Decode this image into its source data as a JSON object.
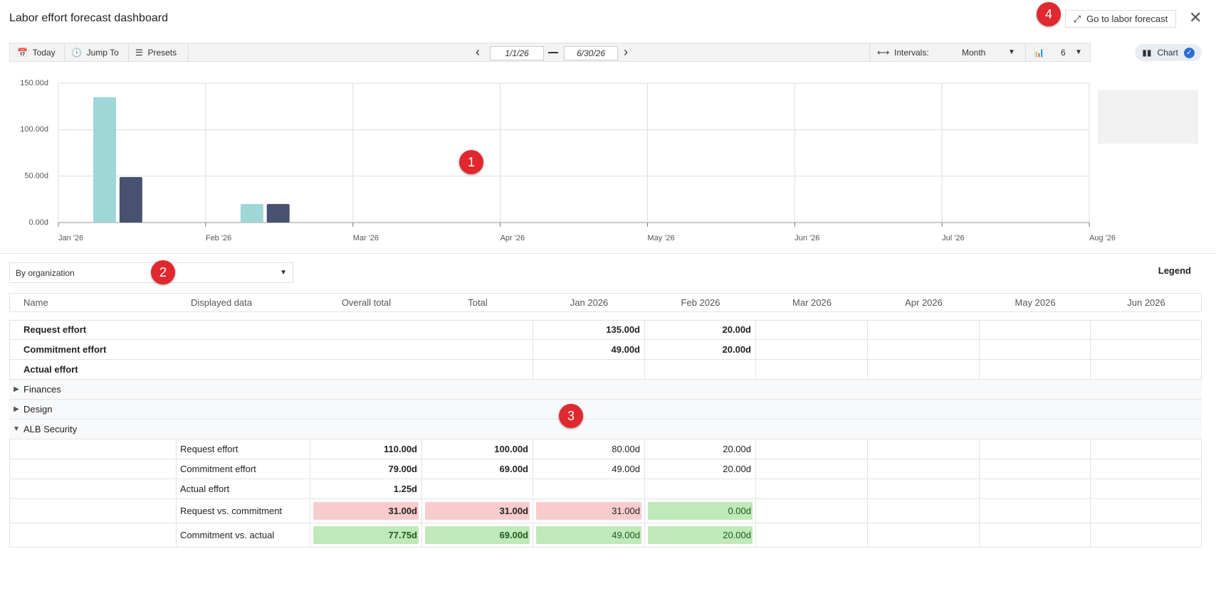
{
  "header": {
    "title": "Labor effort forecast dashboard",
    "action": "Go to labor forecast"
  },
  "toolbar": {
    "today": "Today",
    "jump_to": "Jump To",
    "presets": "Presets",
    "start_date": "1/1/26",
    "end_date": "6/30/26",
    "intervals_label": "Intervals:",
    "interval": "Month",
    "count": "6",
    "view": "Chart"
  },
  "chart_data": {
    "type": "bar",
    "categories": [
      "Jan '26",
      "Feb '26",
      "Mar '26",
      "Apr '26",
      "May '26",
      "Jun '26",
      "Jul '26",
      "Aug '26"
    ],
    "series": [
      {
        "name": "Request effort",
        "color": "#9fd6d8",
        "values": [
          135,
          20,
          null,
          null,
          null,
          null,
          null,
          null
        ]
      },
      {
        "name": "Commitment effort",
        "color": "#465270",
        "values": [
          49,
          20,
          null,
          null,
          null,
          null,
          null,
          null
        ]
      },
      {
        "name": "Actual effort",
        "color": "#4a86e0",
        "values": [
          null,
          null,
          null,
          null,
          null,
          null,
          null,
          null
        ]
      }
    ],
    "ylim": [
      0,
      150
    ],
    "yticks": [
      {
        "value": 0,
        "label": "0.00d"
      },
      {
        "value": 50,
        "label": "50.00d"
      },
      {
        "value": 100,
        "label": "100.00d"
      },
      {
        "value": 150,
        "label": "150.00d"
      }
    ],
    "grid": true,
    "legend": "right"
  },
  "grouping": "By organization",
  "legend_link": "Legend",
  "table": {
    "columns": [
      "Name",
      "Displayed data",
      "Overall total",
      "Total",
      "Jan 2026",
      "Feb 2026",
      "Mar 2026",
      "Apr 2026",
      "May 2026",
      "Jun 2026"
    ],
    "summary_rows": [
      {
        "name": "Request effort",
        "values": [
          "135.00d",
          "20.00d"
        ]
      },
      {
        "name": "Commitment effort",
        "values": [
          "49.00d",
          "20.00d"
        ]
      },
      {
        "name": "Actual effort"
      }
    ],
    "groups": [
      {
        "name": "Finances",
        "expanded": false
      },
      {
        "name": "Design",
        "expanded": false
      },
      {
        "name": "ALB Security",
        "expanded": true,
        "rows": [
          {
            "label": "Request effort",
            "cells": [
              "110.00d",
              "100.00d",
              "80.00d",
              "20.00d"
            ]
          },
          {
            "label": "Commitment effort",
            "cells": [
              "79.00d",
              "69.00d",
              "49.00d",
              "20.00d"
            ]
          },
          {
            "label": "Actual effort",
            "cells": [
              "1.25d"
            ]
          },
          {
            "label": "Request vs. commitment",
            "cells": [
              "31.00d",
              "31.00d",
              "31.00d",
              "0.00d"
            ],
            "status": [
              "negative",
              "negative",
              "negative",
              "positive"
            ]
          },
          {
            "label": "Commitment vs. actual",
            "cells": [
              "77.75d",
              "69.00d",
              "49.00d",
              "20.00d"
            ],
            "status": [
              "positive",
              "positive",
              "positive",
              "positive"
            ]
          }
        ]
      }
    ]
  },
  "markers": [
    "1",
    "2",
    "3",
    "4"
  ]
}
